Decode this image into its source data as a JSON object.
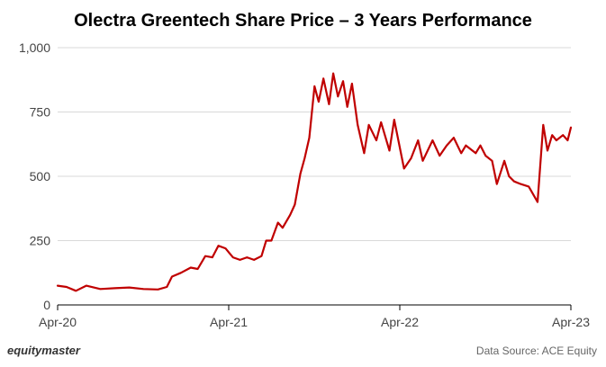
{
  "chart_data": {
    "type": "line",
    "title": "Olectra Greentech Share Price – 3 Years Performance",
    "xlabel": "",
    "ylabel": "",
    "x_ticks": [
      "Apr-20",
      "Apr-21",
      "Apr-22",
      "Apr-23"
    ],
    "y_ticks": [
      "0",
      "250",
      "500",
      "750",
      "1,000"
    ],
    "xlim": [
      "2020-04-01",
      "2023-04-01"
    ],
    "ylim": [
      0,
      1000
    ],
    "grid": "horizontal",
    "legend": "none",
    "series": [
      {
        "color": "#c00000",
        "points": [
          [
            "2020-04-01",
            75
          ],
          [
            "2020-04-20",
            70
          ],
          [
            "2020-05-10",
            55
          ],
          [
            "2020-06-01",
            75
          ],
          [
            "2020-07-01",
            62
          ],
          [
            "2020-08-01",
            65
          ],
          [
            "2020-09-01",
            68
          ],
          [
            "2020-10-01",
            62
          ],
          [
            "2020-11-01",
            60
          ],
          [
            "2020-11-20",
            70
          ],
          [
            "2020-12-01",
            110
          ],
          [
            "2020-12-20",
            125
          ],
          [
            "2021-01-10",
            145
          ],
          [
            "2021-01-25",
            140
          ],
          [
            "2021-02-10",
            190
          ],
          [
            "2021-02-25",
            185
          ],
          [
            "2021-03-10",
            230
          ],
          [
            "2021-03-25",
            220
          ],
          [
            "2021-04-10",
            185
          ],
          [
            "2021-04-25",
            175
          ],
          [
            "2021-05-10",
            185
          ],
          [
            "2021-05-25",
            175
          ],
          [
            "2021-06-10",
            190
          ],
          [
            "2021-06-20",
            250
          ],
          [
            "2021-07-01",
            250
          ],
          [
            "2021-07-15",
            320
          ],
          [
            "2021-07-25",
            300
          ],
          [
            "2021-08-10",
            350
          ],
          [
            "2021-08-20",
            390
          ],
          [
            "2021-09-01",
            510
          ],
          [
            "2021-09-10",
            570
          ],
          [
            "2021-09-20",
            650
          ],
          [
            "2021-10-01",
            850
          ],
          [
            "2021-10-10",
            790
          ],
          [
            "2021-10-20",
            880
          ],
          [
            "2021-11-01",
            780
          ],
          [
            "2021-11-10",
            900
          ],
          [
            "2021-11-20",
            810
          ],
          [
            "2021-12-01",
            870
          ],
          [
            "2021-12-10",
            770
          ],
          [
            "2021-12-20",
            860
          ],
          [
            "2022-01-01",
            700
          ],
          [
            "2022-01-15",
            590
          ],
          [
            "2022-01-25",
            700
          ],
          [
            "2022-02-10",
            640
          ],
          [
            "2022-02-20",
            710
          ],
          [
            "2022-03-10",
            600
          ],
          [
            "2022-03-20",
            720
          ],
          [
            "2022-04-10",
            530
          ],
          [
            "2022-04-25",
            570
          ],
          [
            "2022-05-10",
            640
          ],
          [
            "2022-05-20",
            560
          ],
          [
            "2022-06-10",
            640
          ],
          [
            "2022-06-25",
            580
          ],
          [
            "2022-07-10",
            620
          ],
          [
            "2022-07-25",
            650
          ],
          [
            "2022-08-10",
            590
          ],
          [
            "2022-08-20",
            620
          ],
          [
            "2022-09-10",
            590
          ],
          [
            "2022-09-20",
            620
          ],
          [
            "2022-10-01",
            580
          ],
          [
            "2022-10-15",
            560
          ],
          [
            "2022-10-25",
            470
          ],
          [
            "2022-11-10",
            560
          ],
          [
            "2022-11-20",
            500
          ],
          [
            "2022-12-01",
            480
          ],
          [
            "2022-12-15",
            470
          ],
          [
            "2023-01-01",
            460
          ],
          [
            "2023-01-20",
            400
          ],
          [
            "2023-02-01",
            700
          ],
          [
            "2023-02-10",
            600
          ],
          [
            "2023-02-20",
            660
          ],
          [
            "2023-03-01",
            640
          ],
          [
            "2023-03-15",
            660
          ],
          [
            "2023-03-25",
            640
          ],
          [
            "2023-04-01",
            690
          ]
        ]
      }
    ]
  },
  "footer": {
    "brand": "equitymaster",
    "source": "Data Source: ACE Equity"
  }
}
